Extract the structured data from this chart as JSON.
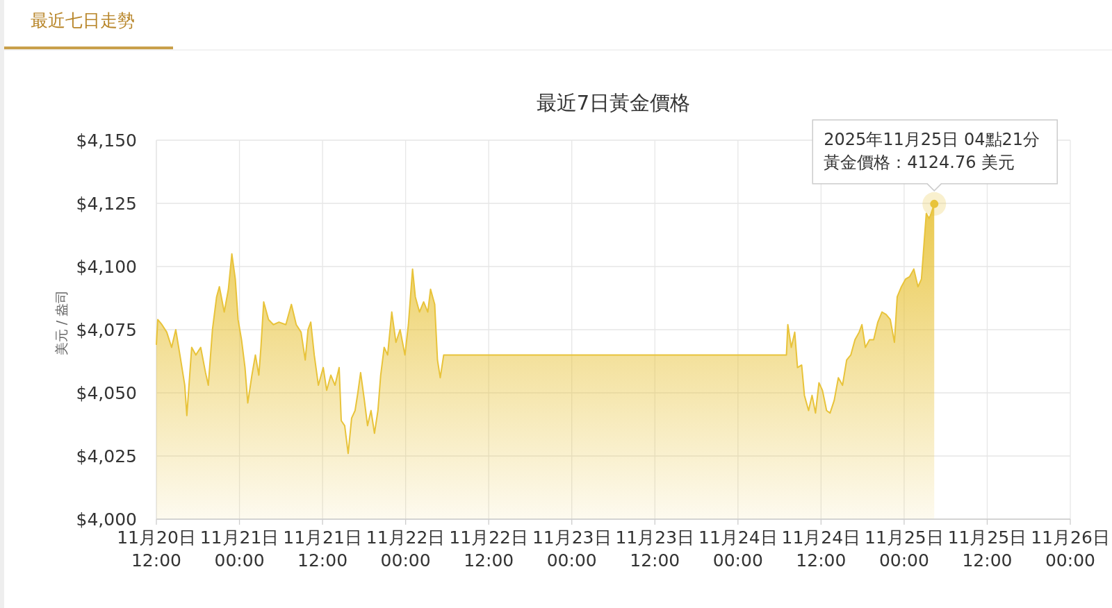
{
  "chart_data": {
    "type": "area",
    "title": "最近7日黃金價格",
    "ylabel": "美元 / 盎司",
    "annotations": [
      "最近七日走勢",
      "2025年11月25日 04點21分",
      {
        "text": "黃金價格：4124.76 美元",
        "x": "2025-11-25T04:21",
        "y": 4124.76
      }
    ],
    "color": "#e8c33a",
    "grid": true,
    "xlim": [
      "2025-11-20T12:00",
      "2025-11-26T00:00"
    ],
    "xticks": [
      {
        "value": "2025-11-20T12:00",
        "label": "11月20日\n12:00"
      },
      {
        "value": "2025-11-21T00:00",
        "label": "11月21日\n00:00"
      },
      {
        "value": "2025-11-21T12:00",
        "label": "11月21日\n12:00"
      },
      {
        "value": "2025-11-22T00:00",
        "label": "11月22日\n00:00"
      },
      {
        "value": "2025-11-22T12:00",
        "label": "11月22日\n12:00"
      },
      {
        "value": "2025-11-23T00:00",
        "label": "11月23日\n00:00"
      },
      {
        "value": "2025-11-23T12:00",
        "label": "11月23日\n12:00"
      },
      {
        "value": "2025-11-24T00:00",
        "label": "11月24日\n00:00"
      },
      {
        "value": "2025-11-24T12:00",
        "label": "11月24日\n12:00"
      },
      {
        "value": "2025-11-25T00:00",
        "label": "11月25日\n00:00"
      },
      {
        "value": "2025-11-25T12:00",
        "label": "11月25日\n12:00"
      },
      {
        "value": "2025-11-26T00:00",
        "label": "11月26日\n00:00"
      }
    ],
    "ylim": [
      4000,
      4150
    ],
    "yticks": [
      {
        "value": 4000,
        "label": "$4,000"
      },
      {
        "value": 4025,
        "label": "$4,025"
      },
      {
        "value": 4050,
        "label": "$4,050"
      },
      {
        "value": 4075,
        "label": "$4,075"
      },
      {
        "value": 4100,
        "label": "$4,100"
      },
      {
        "value": 4125,
        "label": "$4,125"
      },
      {
        "value": 4150,
        "label": "$4,150"
      }
    ],
    "x": [
      "2025-11-20T12:00",
      "2025-11-20T12:12",
      "2025-11-20T12:48",
      "2025-11-20T13:30",
      "2025-11-20T14:12",
      "2025-11-20T14:48",
      "2025-11-20T15:24",
      "2025-11-20T16:06",
      "2025-11-20T16:24",
      "2025-11-20T17:06",
      "2025-11-20T17:42",
      "2025-11-20T18:24",
      "2025-11-20T19:06",
      "2025-11-20T19:30",
      "2025-11-20T20:06",
      "2025-11-20T20:42",
      "2025-11-20T21:06",
      "2025-11-20T21:48",
      "2025-11-20T22:24",
      "2025-11-20T22:54",
      "2025-11-20T23:24",
      "2025-11-20T23:48",
      "2025-11-21T00:18",
      "2025-11-21T00:48",
      "2025-11-21T01:12",
      "2025-11-21T01:48",
      "2025-11-21T02:18",
      "2025-11-21T02:48",
      "2025-11-21T03:06",
      "2025-11-21T03:30",
      "2025-11-21T04:12",
      "2025-11-21T04:54",
      "2025-11-21T05:42",
      "2025-11-21T06:42",
      "2025-11-21T07:30",
      "2025-11-21T08:12",
      "2025-11-21T08:54",
      "2025-11-21T09:30",
      "2025-11-21T09:54",
      "2025-11-21T10:18",
      "2025-11-21T10:48",
      "2025-11-21T11:24",
      "2025-11-21T12:06",
      "2025-11-21T12:36",
      "2025-11-21T13:12",
      "2025-11-21T13:48",
      "2025-11-21T14:24",
      "2025-11-21T14:42",
      "2025-11-21T15:12",
      "2025-11-21T15:42",
      "2025-11-21T16:12",
      "2025-11-21T16:42",
      "2025-11-21T17:06",
      "2025-11-21T17:30",
      "2025-11-21T18:00",
      "2025-11-21T18:30",
      "2025-11-21T19:00",
      "2025-11-21T19:30",
      "2025-11-21T20:00",
      "2025-11-21T20:24",
      "2025-11-21T20:54",
      "2025-11-21T21:24",
      "2025-11-21T22:00",
      "2025-11-21T22:36",
      "2025-11-21T23:12",
      "2025-11-21T23:54",
      "2025-11-22T00:24",
      "2025-11-22T01:00",
      "2025-11-22T01:24",
      "2025-11-22T02:00",
      "2025-11-22T02:36",
      "2025-11-22T03:12",
      "2025-11-22T03:36",
      "2025-11-22T04:12",
      "2025-11-22T04:36",
      "2025-11-22T05:00",
      "2025-11-22T05:30",
      "2025-11-22T06:06",
      "2025-11-24T07:00",
      "2025-11-24T07:12",
      "2025-11-24T07:42",
      "2025-11-24T08:12",
      "2025-11-24T08:36",
      "2025-11-24T09:12",
      "2025-11-24T09:36",
      "2025-11-24T10:12",
      "2025-11-24T10:42",
      "2025-11-24T11:12",
      "2025-11-24T11:42",
      "2025-11-24T12:12",
      "2025-11-24T12:48",
      "2025-11-24T13:18",
      "2025-11-24T13:54",
      "2025-11-24T14:30",
      "2025-11-24T15:06",
      "2025-11-24T15:42",
      "2025-11-24T16:18",
      "2025-11-24T16:54",
      "2025-11-24T17:30",
      "2025-11-24T17:54",
      "2025-11-24T18:24",
      "2025-11-24T19:00",
      "2025-11-24T19:36",
      "2025-11-24T20:12",
      "2025-11-24T20:48",
      "2025-11-24T21:24",
      "2025-11-24T22:00",
      "2025-11-24T22:36",
      "2025-11-24T23:00",
      "2025-11-24T23:36",
      "2025-11-25T00:12",
      "2025-11-25T00:48",
      "2025-11-25T01:24",
      "2025-11-25T02:00",
      "2025-11-25T02:30",
      "2025-11-25T02:54",
      "2025-11-25T03:12",
      "2025-11-25T03:36",
      "2025-11-25T03:54",
      "2025-11-25T04:21"
    ],
    "values": [
      4069,
      4079,
      4077,
      4074,
      4068,
      4075,
      4065,
      4053,
      4041,
      4068,
      4065,
      4068,
      4058,
      4053,
      4075,
      4088,
      4092,
      4082,
      4091,
      4105,
      4095,
      4079,
      4071,
      4060,
      4046,
      4057,
      4065,
      4057,
      4068,
      4086,
      4079,
      4077,
      4078,
      4077,
      4085,
      4077,
      4074,
      4063,
      4075,
      4078,
      4065,
      4053,
      4060,
      4051,
      4057,
      4053,
      4060,
      4039,
      4037,
      4026,
      4040,
      4043,
      4050,
      4058,
      4048,
      4037,
      4043,
      4034,
      4043,
      4057,
      4068,
      4065,
      4082,
      4070,
      4075,
      4065,
      4077,
      4099,
      4088,
      4082,
      4086,
      4082,
      4091,
      4085,
      4063,
      4056,
      4065,
      4065,
      4065,
      4077,
      4068,
      4074,
      4060,
      4061,
      4049,
      4043,
      4049,
      4042,
      4054,
      4051,
      4043,
      4042,
      4047,
      4056,
      4053,
      4063,
      4065,
      4071,
      4074,
      4077,
      4068,
      4071,
      4071,
      4078,
      4082,
      4081,
      4079,
      4070,
      4088,
      4092,
      4095,
      4096,
      4099,
      4092,
      4095,
      4110,
      4121,
      4119,
      4121,
      4124.76
    ]
  }
}
